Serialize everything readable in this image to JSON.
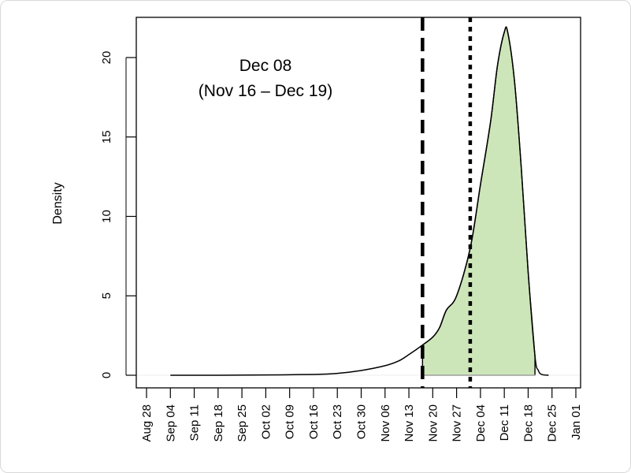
{
  "chart_data": {
    "type": "area",
    "title": "",
    "xlabel": "",
    "ylabel": "Density",
    "annotation": {
      "line1": "Dec 08",
      "line2": "(Nov 16 – Dec 19)"
    },
    "x_ticks": [
      "Aug 28",
      "Sep 04",
      "Sep 11",
      "Sep 18",
      "Sep 25",
      "Oct 02",
      "Oct 09",
      "Oct 16",
      "Oct 23",
      "Oct 30",
      "Nov 06",
      "Nov 13",
      "Nov 20",
      "Nov 27",
      "Dec 04",
      "Dec 11",
      "Dec 18",
      "Dec 25",
      "Jan 01"
    ],
    "y_ticks": [
      0,
      5,
      10,
      15,
      20
    ],
    "xlim": [
      "Aug 28",
      "Jan 01"
    ],
    "ylim": [
      0,
      22
    ],
    "grid": false,
    "fill_color": "#cde6b9",
    "fill_range": [
      "Nov 17",
      "Dec 20"
    ],
    "dashed_line_x": "Nov 17",
    "dotted_line_x": "Dec 01",
    "series": [
      {
        "x": [
          "Sep 04",
          "Sep 18",
          "Oct 02",
          "Oct 16",
          "Oct 23",
          "Oct 30",
          "Nov 06",
          "Nov 10",
          "Nov 13",
          "Nov 17",
          "Nov 20",
          "Nov 22",
          "Nov 24",
          "Nov 27",
          "Dec 01",
          "Dec 04",
          "Dec 07",
          "Dec 09",
          "Dec 11",
          "Dec 12",
          "Dec 14",
          "Dec 16",
          "Dec 18",
          "Dec 20",
          "Dec 21",
          "Dec 22",
          "Dec 24"
        ],
        "y": [
          0,
          0,
          0.02,
          0.05,
          0.12,
          0.3,
          0.6,
          0.9,
          1.3,
          1.9,
          2.4,
          3.0,
          4.1,
          5.0,
          8.0,
          12.0,
          16.0,
          19.5,
          21.6,
          21.6,
          18.5,
          13.0,
          6.5,
          1.2,
          0.3,
          0.05,
          0
        ]
      }
    ]
  }
}
